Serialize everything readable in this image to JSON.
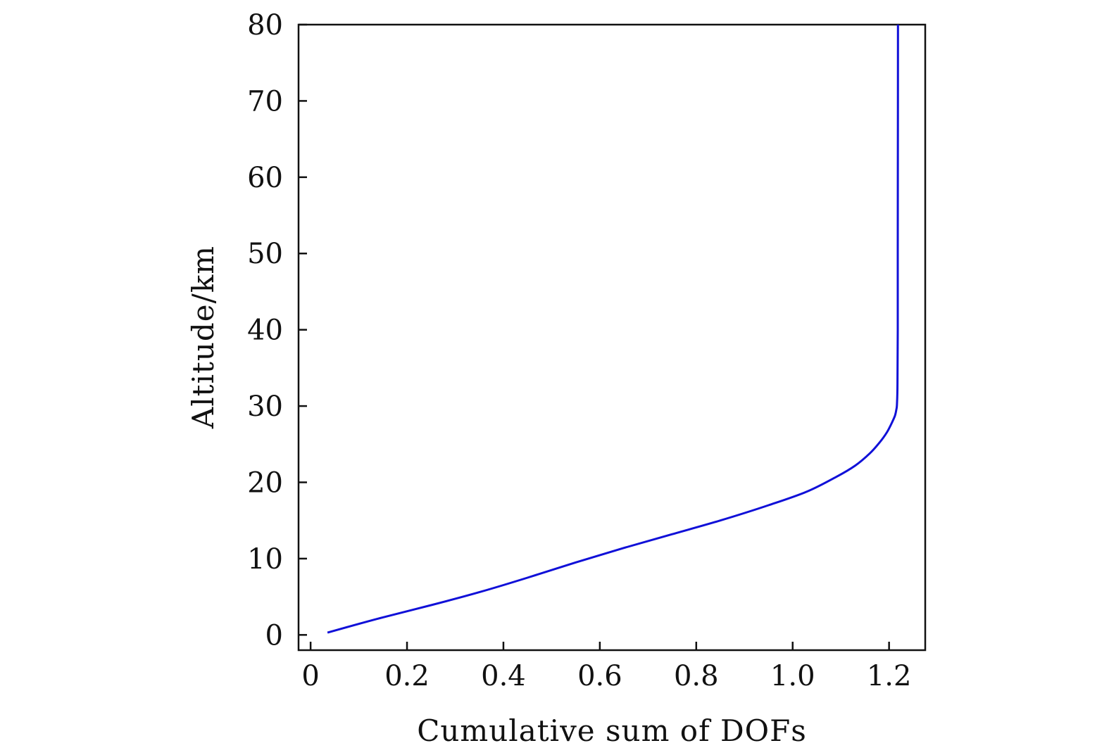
{
  "chart_data": {
    "type": "line",
    "title": "",
    "xlabel": "Cumulative sum of DOFs",
    "ylabel": "Altitude/km",
    "xlim": [
      -0.025,
      1.275
    ],
    "ylim": [
      -2,
      80
    ],
    "xticks": [
      0,
      0.2,
      0.4,
      0.6,
      0.8,
      1.0,
      1.2
    ],
    "xtick_labels": [
      "0",
      "0.2",
      "0.4",
      "0.6",
      "0.8",
      "1.0",
      "1.2"
    ],
    "yticks": [
      0,
      10,
      20,
      30,
      40,
      50,
      60,
      70,
      80
    ],
    "ytick_labels": [
      "0",
      "10",
      "20",
      "30",
      "40",
      "50",
      "60",
      "70",
      "80"
    ],
    "grid": false,
    "legend": "none",
    "color": "#1010d8",
    "series": [
      {
        "x": [
          0.035,
          0.08,
          0.15,
          0.25,
          0.35,
          0.45,
          0.55,
          0.65,
          0.75,
          0.85,
          0.95,
          1.03,
          1.09,
          1.13,
          1.16,
          1.18,
          1.195,
          1.205,
          1.212,
          1.215,
          1.2165,
          1.2175,
          1.218,
          1.218,
          1.2182,
          1.2185
        ],
        "y": [
          0.3,
          1.1,
          2.3,
          3.9,
          5.6,
          7.5,
          9.5,
          11.4,
          13.2,
          15.0,
          17.0,
          18.8,
          20.7,
          22.2,
          23.8,
          25.2,
          26.5,
          27.7,
          28.7,
          29.5,
          30.3,
          33.0,
          40.0,
          50.0,
          60.0,
          80.0
        ]
      }
    ]
  }
}
